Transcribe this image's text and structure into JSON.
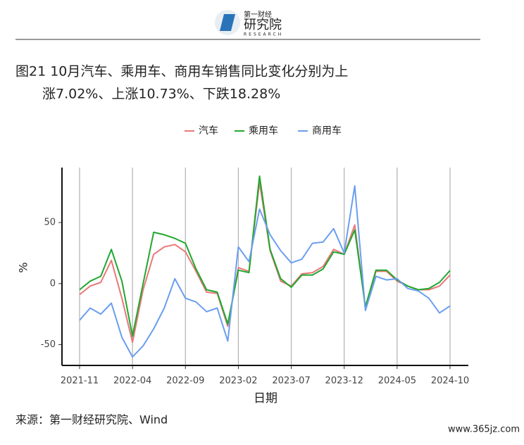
{
  "logo": {
    "brand": "第一财经",
    "name": "研究院",
    "sub": "RESEARCH"
  },
  "chart_data": {
    "type": "line",
    "title": [
      "图21 10月汽车、乘用车、商用车销售同比变化分别为上",
      "涨7.02%、上涨10.73%、下跌18.28%"
    ],
    "x_label": "日期",
    "y_label": "%",
    "categories": [
      "2021-11",
      null,
      null,
      null,
      null,
      "2022-04",
      null,
      null,
      null,
      null,
      "2022-09",
      null,
      null,
      null,
      null,
      "2023-02",
      null,
      null,
      null,
      null,
      "2023-07",
      null,
      null,
      null,
      null,
      "2023-12",
      null,
      null,
      null,
      null,
      "2024-05",
      null,
      null,
      null,
      null,
      "2024-10"
    ],
    "series": [
      {
        "name": "汽车",
        "color": "#e8787a",
        "values": [
          -9,
          -2,
          1,
          19,
          -12,
          -48,
          -5,
          24,
          30,
          32,
          26,
          10,
          -7,
          -8,
          -35,
          13,
          10,
          83,
          27,
          2,
          -2,
          8,
          9,
          14,
          28,
          24,
          48,
          -20,
          10,
          10,
          2,
          -2,
          -5,
          -5,
          -2,
          7.02
        ]
      },
      {
        "name": "乘用车",
        "color": "#1fa82e",
        "values": [
          -5,
          2,
          6,
          28,
          2,
          -43,
          0,
          42,
          40,
          37,
          33,
          12,
          -5,
          -7,
          -33,
          11,
          9,
          88,
          28,
          4,
          -3,
          7,
          7,
          12,
          26,
          24,
          44,
          -19,
          11,
          11,
          3,
          -2,
          -5,
          -4,
          1,
          10.73
        ]
      },
      {
        "name": "商用车",
        "color": "#6a9ef0",
        "values": [
          -30,
          -20,
          -25,
          -16,
          -44,
          -60,
          -51,
          -37,
          -20,
          4,
          -12,
          -15,
          -23,
          -20,
          -47,
          30,
          18,
          61,
          40,
          27,
          17,
          20,
          33,
          34,
          45,
          25,
          80,
          -22,
          6,
          3,
          4,
          -4,
          -6,
          -12,
          -24,
          -18.28
        ]
      }
    ],
    "ylim": [
      -67,
      95
    ],
    "yticks": [
      -50,
      0,
      50
    ],
    "grid": "x",
    "legend": "top",
    "source": "来源：第一财经研究院、Wind",
    "watermark": "www.365jz.com"
  }
}
